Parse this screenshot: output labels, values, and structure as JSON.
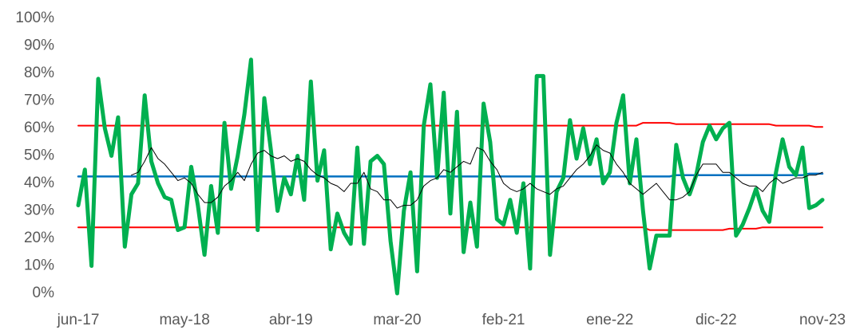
{
  "chart_data": {
    "type": "line",
    "categories": [
      "jun-17",
      null,
      null,
      null,
      null,
      null,
      null,
      null,
      null,
      null,
      null,
      null,
      null,
      null,
      null,
      null,
      "may-18",
      null,
      null,
      null,
      null,
      null,
      null,
      null,
      null,
      null,
      null,
      null,
      null,
      null,
      null,
      null,
      "abr-19",
      null,
      null,
      null,
      null,
      null,
      null,
      null,
      null,
      null,
      null,
      null,
      null,
      null,
      null,
      null,
      "mar-20",
      null,
      null,
      null,
      null,
      null,
      null,
      null,
      null,
      null,
      null,
      null,
      null,
      null,
      null,
      null,
      "feb-21",
      null,
      null,
      null,
      null,
      null,
      null,
      null,
      null,
      null,
      null,
      null,
      null,
      null,
      null,
      null,
      "ene-22",
      null,
      null,
      null,
      null,
      null,
      null,
      null,
      null,
      null,
      null,
      null,
      null,
      null,
      null,
      null,
      "dic-22",
      null,
      null,
      null,
      null,
      null,
      null,
      null,
      null,
      null,
      null,
      null,
      null,
      null,
      null,
      null,
      "nov-23"
    ],
    "series": [
      {
        "color": "#ff0000",
        "values": [
          61,
          61,
          61,
          61,
          61,
          61,
          61,
          61,
          61,
          61,
          61,
          61,
          61,
          61,
          61,
          61,
          61,
          61,
          61,
          61,
          61,
          61,
          61,
          61,
          61,
          61,
          61,
          61,
          61,
          61,
          61,
          61,
          61,
          61,
          61,
          61,
          61,
          61,
          61,
          61,
          61,
          61,
          61,
          61,
          61,
          61,
          61,
          61,
          61,
          61,
          61,
          61,
          61,
          61,
          61,
          61,
          61,
          61,
          61,
          61,
          61,
          61,
          61,
          61,
          61,
          61,
          61,
          61,
          61,
          61,
          61,
          61,
          61,
          61,
          61,
          61,
          61,
          61,
          61,
          61,
          61,
          61,
          61,
          61,
          61,
          62,
          62,
          62,
          62,
          62,
          61.5,
          61.5,
          61.5,
          61.5,
          61.5,
          61.5,
          61.5,
          61.5,
          61.5,
          61.5,
          61.5,
          61.5,
          61.5,
          61.5,
          61.5,
          61,
          61,
          61,
          61,
          61,
          61,
          60.5,
          60.5
        ]
      },
      {
        "color": "#ff0000",
        "values": [
          24,
          24,
          24,
          24,
          24,
          24,
          24,
          24,
          24,
          24,
          24,
          24,
          24,
          24,
          24,
          24,
          24,
          24,
          24,
          24,
          24,
          24,
          24,
          24,
          24,
          24,
          24,
          24,
          24,
          24,
          24,
          24,
          24,
          24,
          24,
          24,
          24,
          24,
          24,
          24,
          24,
          24,
          24,
          24,
          24,
          24,
          24,
          24,
          24,
          24,
          24,
          24,
          24,
          24,
          24,
          24,
          24,
          24,
          24,
          24,
          24,
          24,
          24,
          24,
          24,
          24,
          24,
          24,
          24,
          24,
          24,
          24,
          24,
          24,
          24,
          24,
          24,
          24,
          24,
          24,
          24,
          24,
          24,
          24,
          24,
          24,
          23,
          23,
          23,
          23,
          23,
          23,
          23,
          23,
          23,
          23,
          23,
          23,
          23.5,
          23.5,
          23.5,
          23.5,
          23.5,
          24,
          24,
          24,
          24,
          24,
          24,
          24,
          24,
          24,
          24
        ]
      },
      {
        "color": "#0070c0",
        "values": [
          42.5,
          42.5,
          42.5,
          42.5,
          42.5,
          42.5,
          42.5,
          42.5,
          42.5,
          42.5,
          42.5,
          42.5,
          42.5,
          42.5,
          42.5,
          42.5,
          42.5,
          42.5,
          42.5,
          42.5,
          42.5,
          42.5,
          42.5,
          42.5,
          42.5,
          42.5,
          42.5,
          42.5,
          42.5,
          42.5,
          42.5,
          42.5,
          42.5,
          42.5,
          42.5,
          42.5,
          42.5,
          42.5,
          42.5,
          42.5,
          42.5,
          42.5,
          42.5,
          42.5,
          42.5,
          42.5,
          42.5,
          42.5,
          42.5,
          42.5,
          42.5,
          42.5,
          42.5,
          42.5,
          42.5,
          42.5,
          42.5,
          42.5,
          42.5,
          42.5,
          42.5,
          42.5,
          42.5,
          42.5,
          42.5,
          42.5,
          42.5,
          42.5,
          42.5,
          42.5,
          42.5,
          42.5,
          42.5,
          42.5,
          42.5,
          42.5,
          42.5,
          42.5,
          42.5,
          42.5,
          42.5,
          42.5,
          42.5,
          42.5,
          42.5,
          42.5,
          42.5,
          42.5,
          42.5,
          42.5,
          43,
          43,
          43,
          43,
          43,
          43,
          43,
          43,
          43,
          43,
          43,
          43,
          43,
          43,
          43,
          43,
          43,
          43,
          43,
          43,
          43.5,
          43.5,
          43.5
        ]
      },
      {
        "color": "#00b050",
        "values": [
          32,
          45,
          10,
          78,
          60,
          50,
          64,
          17,
          36,
          40,
          72,
          48,
          40,
          35,
          34,
          23,
          24,
          46,
          32,
          14,
          39,
          22,
          62,
          38,
          50,
          65,
          85,
          23,
          71,
          52,
          30,
          42,
          36,
          50,
          34,
          77,
          41,
          52,
          16,
          29,
          22,
          18,
          53,
          18,
          48,
          50,
          47,
          19,
          0,
          30,
          44,
          8,
          61,
          76,
          42,
          73,
          29,
          66,
          15,
          33,
          17,
          69,
          55,
          27,
          25,
          34,
          22,
          40,
          9,
          79,
          79,
          14,
          37,
          42,
          63,
          49,
          60,
          47,
          56,
          40,
          44,
          62,
          72,
          40,
          56,
          30,
          9,
          21,
          21,
          21,
          54,
          42,
          36,
          43,
          55,
          61,
          56,
          60,
          62,
          21,
          25,
          31,
          38,
          30,
          26,
          44,
          56,
          46,
          43,
          53,
          31,
          32,
          34
        ]
      },
      {
        "color": "#000000",
        "values": [
          null,
          null,
          null,
          null,
          null,
          null,
          null,
          null,
          43,
          44,
          48,
          53,
          49,
          47,
          44,
          41,
          42,
          40,
          36,
          33,
          33,
          35,
          39,
          41,
          44,
          41,
          47,
          51,
          52,
          50,
          49,
          50,
          48,
          49,
          48,
          45,
          43,
          42,
          40,
          39,
          37,
          40,
          40,
          44,
          38,
          37,
          34,
          34,
          31,
          32,
          32,
          34,
          39,
          41,
          42,
          45,
          44,
          46,
          48,
          47,
          53,
          52,
          48,
          45,
          40,
          38,
          37,
          38,
          40,
          38,
          37,
          36,
          38,
          39,
          42,
          45,
          47,
          50,
          54,
          52,
          51,
          47,
          44,
          40,
          38,
          36,
          38,
          40,
          37,
          34,
          34,
          35,
          37,
          43,
          47,
          47,
          47,
          44,
          44,
          42,
          40,
          39,
          39,
          37,
          40,
          42,
          40,
          41,
          42,
          42,
          43,
          43,
          44
        ]
      }
    ],
    "ylim": [
      0,
      100
    ],
    "yticks": [
      {
        "value": 0,
        "label": "0%"
      },
      {
        "value": 10,
        "label": "10%"
      },
      {
        "value": 20,
        "label": "20%"
      },
      {
        "value": 30,
        "label": "30%"
      },
      {
        "value": 40,
        "label": "40%"
      },
      {
        "value": 50,
        "label": "50%"
      },
      {
        "value": 60,
        "label": "60%"
      },
      {
        "value": 70,
        "label": "70%"
      },
      {
        "value": 80,
        "label": "80%"
      },
      {
        "value": 90,
        "label": "90%"
      },
      {
        "value": 100,
        "label": "100%"
      }
    ],
    "grid": false
  }
}
